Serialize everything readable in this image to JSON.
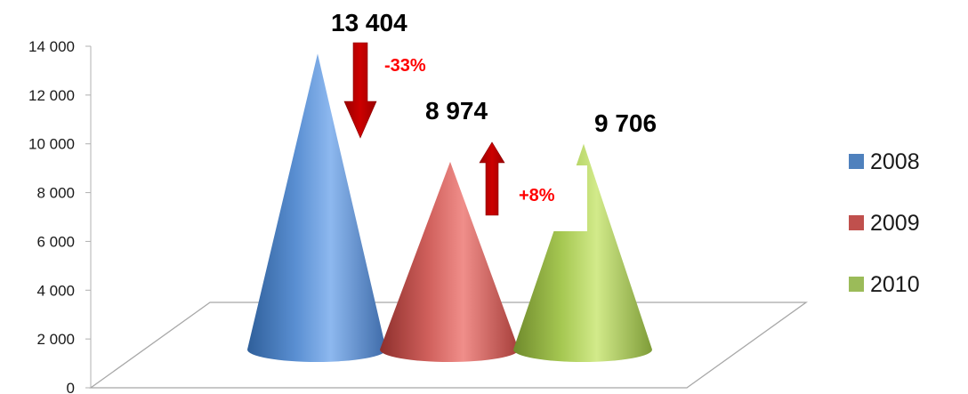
{
  "chart_data": {
    "type": "bar",
    "subtype": "3d-cone",
    "categories": [
      "2008",
      "2009",
      "2010"
    ],
    "values": [
      13404,
      8974,
      9706
    ],
    "data_labels": [
      "13 404",
      "8 974",
      "9 706"
    ],
    "ylim": [
      0,
      14000
    ],
    "yticks": [
      {
        "value": 0,
        "label": "0"
      },
      {
        "value": 2000,
        "label": "2 000"
      },
      {
        "value": 4000,
        "label": "4 000"
      },
      {
        "value": 6000,
        "label": "6 000"
      },
      {
        "value": 8000,
        "label": "8 000"
      },
      {
        "value": 10000,
        "label": "10 000"
      },
      {
        "value": 12000,
        "label": "12 000"
      },
      {
        "value": 14000,
        "label": "14 000"
      }
    ],
    "legend": {
      "position": "right",
      "entries": [
        {
          "label": "2008",
          "color": "#4f81bd"
        },
        {
          "label": "2009",
          "color": "#c0504d"
        },
        {
          "label": "2010",
          "color": "#9bbb59"
        }
      ]
    },
    "annotations": [
      {
        "text": "-33%",
        "direction": "down",
        "color": "#ff0000",
        "arrow_color": "#c00000"
      },
      {
        "text": "+8%",
        "direction": "up",
        "color": "#ff0000",
        "arrow_color": "#c00000"
      }
    ],
    "grid": false
  }
}
